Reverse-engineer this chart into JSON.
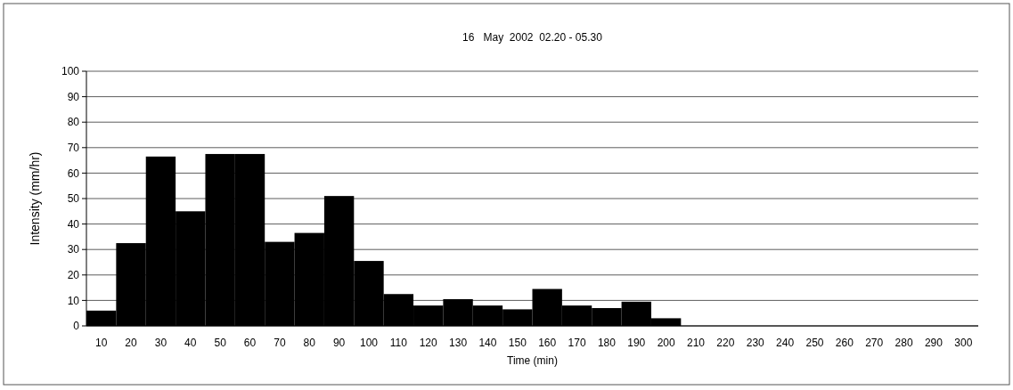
{
  "chart_data": {
    "type": "bar",
    "title": "16   May  2002  02.20 - 05.30",
    "xlabel": "Time (min)",
    "ylabel": "Intensity (mm/hr)",
    "categories": [
      "10",
      "20",
      "30",
      "40",
      "50",
      "60",
      "70",
      "80",
      "90",
      "100",
      "110",
      "120",
      "130",
      "140",
      "150",
      "160",
      "170",
      "180",
      "190",
      "200",
      "210",
      "220",
      "230",
      "240",
      "250",
      "260",
      "270",
      "280",
      "290",
      "300"
    ],
    "series": [
      {
        "color": "#000000",
        "values": [
          6,
          32.5,
          66.5,
          45,
          67.5,
          67.5,
          33,
          36.5,
          51,
          25.5,
          12.5,
          8,
          10.5,
          8,
          6.5,
          14.5,
          8,
          7,
          9.5,
          3,
          0,
          0,
          0,
          0,
          0,
          0,
          0,
          0,
          0,
          0
        ]
      }
    ],
    "ylim": [
      0,
      100
    ],
    "yticks": [
      0,
      10,
      20,
      30,
      40,
      50,
      60,
      70,
      80,
      90,
      100
    ],
    "grid": "y"
  }
}
